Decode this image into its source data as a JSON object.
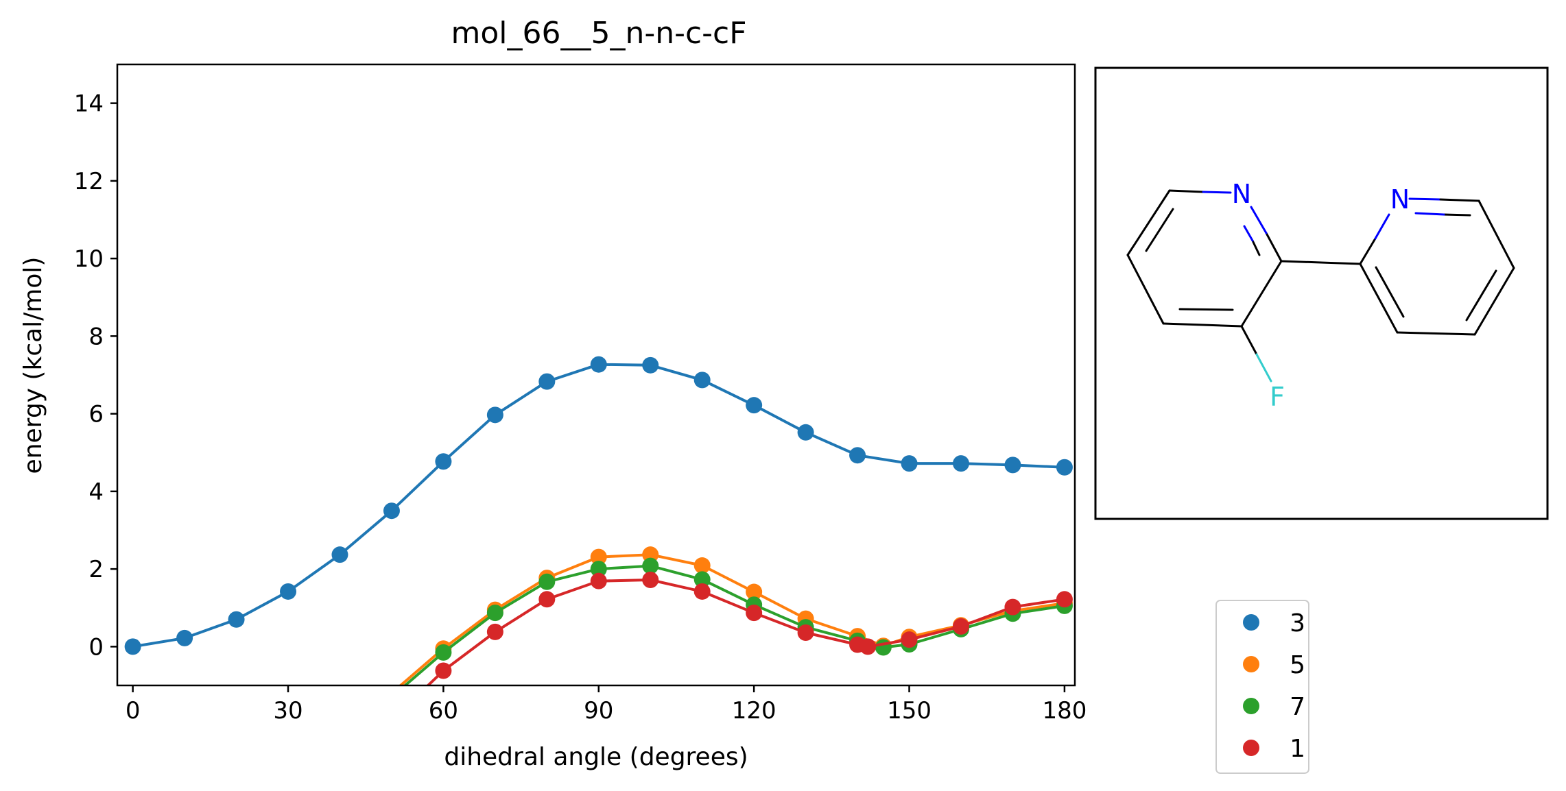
{
  "chart_data": {
    "type": "line",
    "title": "mol_66__5_n-n-c-cF",
    "xlabel": "dihedral angle (degrees)",
    "ylabel": "energy (kcal/mol)",
    "xlim": [
      -3,
      182
    ],
    "ylim": [
      -1,
      15
    ],
    "xticks": [
      0,
      30,
      60,
      90,
      120,
      150,
      180
    ],
    "yticks": [
      0,
      2,
      4,
      6,
      8,
      10,
      12,
      14
    ],
    "grid": false,
    "legend_position": "lower-right, outside plot",
    "series": [
      {
        "name": "3",
        "color": "#1f77b4",
        "x": [
          0,
          10,
          20,
          30,
          40,
          50,
          60,
          70,
          80,
          90,
          100,
          110,
          120,
          130,
          140,
          150,
          160,
          170,
          180
        ],
        "y": [
          0.0,
          0.22,
          0.7,
          1.42,
          2.37,
          3.5,
          4.77,
          5.97,
          6.83,
          7.27,
          7.25,
          6.87,
          6.22,
          5.52,
          4.93,
          4.72,
          4.72,
          4.68,
          4.62
        ]
      },
      {
        "name": "5",
        "color": "#ff7f0e",
        "x": [
          50,
          60,
          70,
          80,
          90,
          100,
          110,
          120,
          130,
          140,
          145,
          150,
          160,
          170,
          180
        ],
        "y": [
          -1.2,
          -0.05,
          0.95,
          1.77,
          2.31,
          2.37,
          2.09,
          1.41,
          0.72,
          0.27,
          0.02,
          0.25,
          0.55,
          0.92,
          1.12
        ]
      },
      {
        "name": "7",
        "color": "#2ca02c",
        "x": [
          50,
          60,
          70,
          80,
          90,
          100,
          110,
          120,
          130,
          140,
          145,
          150,
          160,
          170,
          180
        ],
        "y": [
          -1.3,
          -0.15,
          0.87,
          1.67,
          2.0,
          2.08,
          1.73,
          1.08,
          0.5,
          0.15,
          -0.02,
          0.06,
          0.45,
          0.85,
          1.05
        ]
      },
      {
        "name": "1",
        "color": "#d62728",
        "x": [
          50,
          60,
          70,
          80,
          90,
          100,
          110,
          120,
          130,
          140,
          142,
          150,
          160,
          170,
          180
        ],
        "y": [
          -1.9,
          -0.62,
          0.38,
          1.22,
          1.69,
          1.72,
          1.42,
          0.87,
          0.36,
          0.05,
          0.0,
          0.18,
          0.52,
          1.02,
          1.22
        ]
      }
    ]
  },
  "molecule": {
    "atom_labels": [
      "N",
      "N",
      "F"
    ],
    "atom_colors": {
      "N": "#0000ff",
      "F": "#33cccc",
      "bond": "#000000"
    }
  }
}
